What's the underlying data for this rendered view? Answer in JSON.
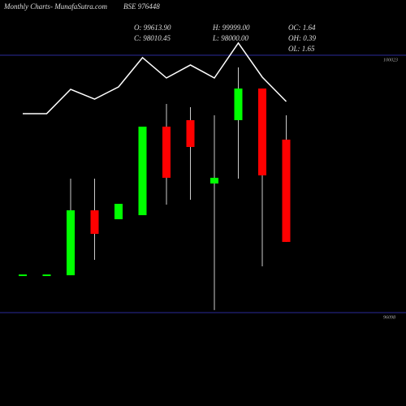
{
  "chart_data": {
    "type": "candlestick",
    "title": "Monthly Charts",
    "subtitle": "- MunafaSutra.com",
    "symbol": "BSE 976448",
    "stats": [
      "O: 99613.90",
      "H: 99999.00",
      "OC: 1.64",
      "C: 98010.45",
      "L: 98000.00",
      "OH: 0.39",
      "OL: 1.65"
    ],
    "categories": [
      null,
      null,
      null,
      null,
      null,
      null,
      null,
      null,
      null,
      null,
      null,
      null
    ],
    "open": [
      96680,
      96680,
      96668,
      97658,
      97522,
      97584,
      98934,
      99033,
      98067,
      99033,
      99515,
      98736
    ],
    "high": [
      96680,
      96680,
      98141,
      98141,
      97757,
      98934,
      99280,
      99231,
      99107,
      99837,
      99515,
      99107
    ],
    "low": [
      96680,
      96680,
      96668,
      96903,
      97522,
      97584,
      97745,
      97819,
      96136,
      98141,
      96804,
      97176
    ],
    "close": [
      96680,
      96680,
      97658,
      97299,
      97757,
      98934,
      98154,
      98624,
      98154,
      99515,
      98191,
      97176
    ],
    "up_color": "#00ff00",
    "down_color": "#ff0000",
    "line": {
      "color": "#ffffff",
      "values": [
        99132,
        99132,
        99503,
        99354,
        99540,
        99986,
        99676,
        99874,
        99676,
        100209,
        99689,
        99317
      ]
    },
    "ylim": [
      96098,
      100023
    ],
    "yticks": [
      100023,
      96098
    ],
    "grid": true,
    "grid_color": "#2a2a9a"
  }
}
